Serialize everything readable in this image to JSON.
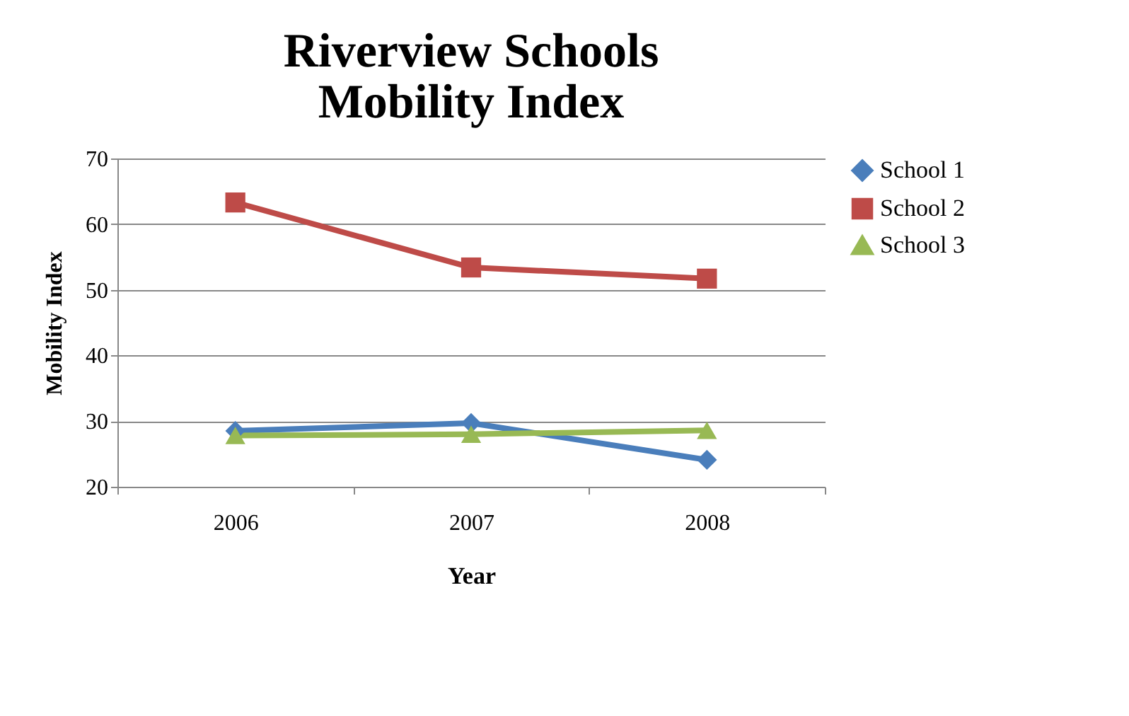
{
  "chart_data": {
    "type": "line",
    "title": "Riverview Schools Mobility Index",
    "xlabel": "Year",
    "ylabel": "Mobility Index",
    "categories": [
      "2006",
      "2007",
      "2008"
    ],
    "series": [
      {
        "name": "School 1",
        "color": "#4a7ebb",
        "marker": "diamond",
        "values": [
          28.5,
          29.7,
          24.1
        ]
      },
      {
        "name": "School 2",
        "color": "#be4b48",
        "marker": "square",
        "values": [
          63.3,
          53.4,
          51.7
        ]
      },
      {
        "name": "School 3",
        "color": "#98b954",
        "marker": "triangle",
        "values": [
          27.8,
          28,
          28.6
        ]
      }
    ],
    "ylim": [
      20,
      70
    ],
    "yticks": [
      20,
      30,
      40,
      50,
      60,
      70
    ],
    "grid": "y",
    "legend": "right"
  }
}
